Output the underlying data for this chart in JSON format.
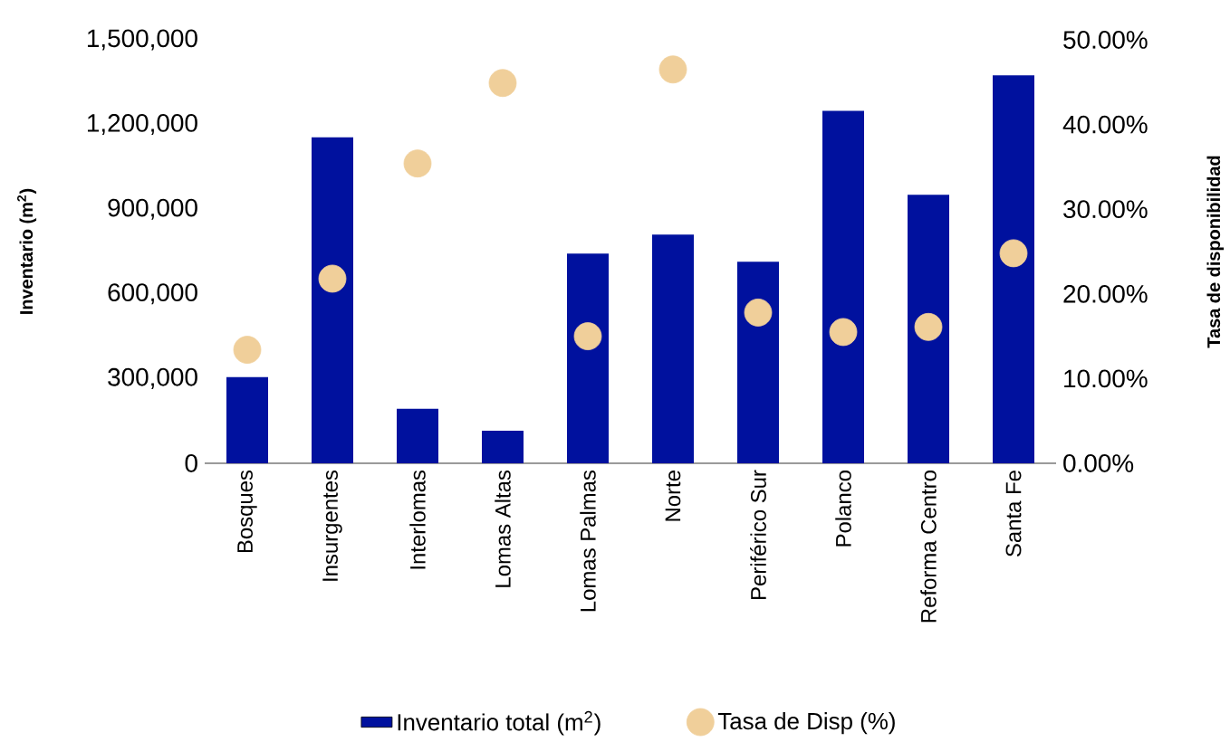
{
  "chart_data": {
    "type": "bar",
    "categories": [
      "Bosques",
      "Insurgentes",
      "Interlomas",
      "Lomas Altas",
      "Lomas Palmas",
      "Norte",
      "Periférico Sur",
      "Polanco",
      "Reforma Centro",
      "Santa Fe"
    ],
    "series": [
      {
        "name": "Inventario total (m$^{2}$)",
        "color": "#00119e",
        "values": [
          305000,
          1155000,
          193000,
          115000,
          743000,
          810000,
          714000,
          1248000,
          951000,
          1374000
        ]
      },
      {
        "name": "Tasa de Disp (%)",
        "type": "scatter",
        "axis": "y2",
        "color": "#f0cf9a",
        "values": [
          13.4,
          21.8,
          35.4,
          44.9,
          15.0,
          46.5,
          17.8,
          15.5,
          16.1,
          24.8
        ]
      }
    ],
    "ylabel": "Inventario (m$^{2}$)",
    "y2label": "Tasa de disponibilidad",
    "ylim": [
      0,
      1500000
    ],
    "yticks": [
      0,
      {
        "value": 300000,
        "label": "300,000"
      },
      {
        "value": 600000,
        "label": "600,000"
      },
      {
        "value": 900000,
        "label": "900,000"
      },
      {
        "value": 1200000,
        "label": "1,200,000"
      },
      {
        "value": 1500000,
        "label": "1,500,000"
      }
    ],
    "y2lim": [
      0,
      50
    ],
    "y2ticks": [
      {
        "value": 0,
        "label": "0.00%"
      },
      {
        "value": 10,
        "label": "10.00%"
      },
      {
        "value": 20,
        "label": "20.00%"
      },
      {
        "value": 30,
        "label": "30.00%"
      },
      {
        "value": 40,
        "label": "40.00%"
      },
      {
        "value": 50,
        "label": "50.00%"
      }
    ],
    "legend": "bottom"
  }
}
